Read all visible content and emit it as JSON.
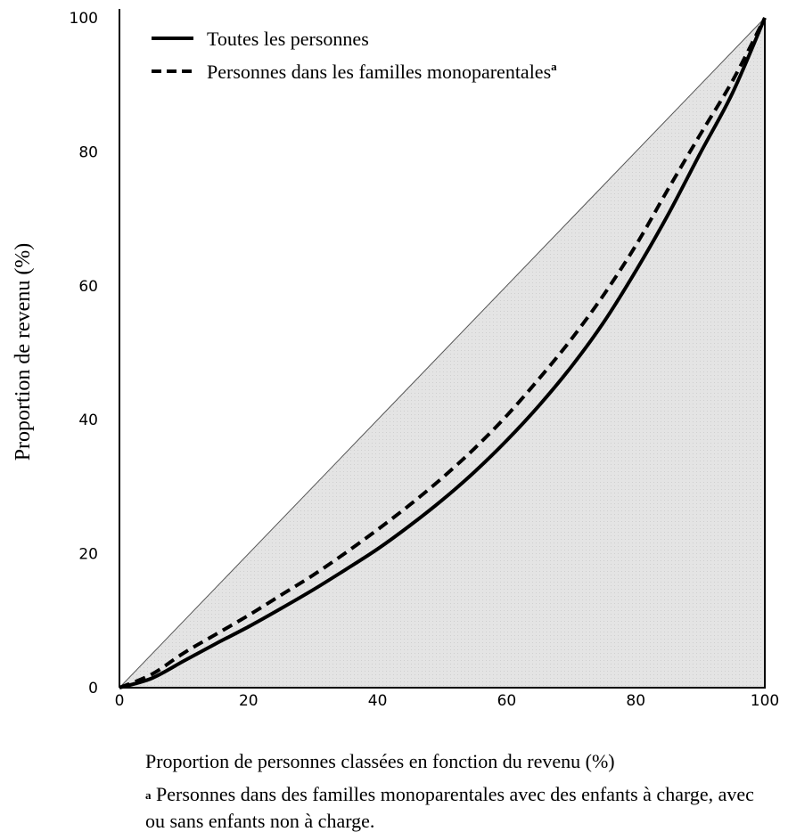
{
  "chart_data": {
    "type": "line",
    "xlabel": "Proportion de personnes classées en fonction du revenu (%)",
    "ylabel": "Proportion de revenu (%)",
    "xlim": [
      0,
      100
    ],
    "ylim": [
      0,
      100
    ],
    "x_ticks": [
      "0",
      "20",
      "40",
      "60",
      "80",
      "100"
    ],
    "y_ticks": [
      "0",
      "20",
      "40",
      "60",
      "80",
      "100"
    ],
    "grid": false,
    "legend_placement": "top-left",
    "shaded_area": "under equality line",
    "equality_line": [
      [
        0,
        0
      ],
      [
        100,
        100
      ]
    ],
    "series": [
      {
        "name": "Toutes les personnes",
        "style": "solid",
        "x": [
          0,
          5,
          10,
          15,
          20,
          25,
          30,
          35,
          40,
          45,
          50,
          55,
          60,
          65,
          70,
          75,
          80,
          85,
          90,
          95,
          100
        ],
        "y": [
          0,
          1.4,
          4.0,
          6.6,
          9.1,
          11.8,
          14.6,
          17.6,
          20.7,
          24.2,
          28.0,
          32.2,
          36.9,
          42.1,
          47.9,
          54.5,
          62.2,
          70.6,
          79.8,
          88.8,
          100
        ]
      },
      {
        "name": "Personnes dans les familles monoparentales",
        "name_superscript": "a",
        "style": "dashed",
        "x": [
          0,
          5,
          10,
          15,
          20,
          25,
          30,
          35,
          40,
          45,
          50,
          55,
          60,
          65,
          70,
          75,
          80,
          85,
          90,
          95,
          100
        ],
        "y": [
          0,
          2.0,
          5.2,
          8.0,
          10.8,
          13.8,
          16.8,
          20.1,
          23.6,
          27.3,
          31.3,
          35.7,
          40.6,
          46.1,
          52.0,
          58.6,
          66.0,
          74.4,
          82.6,
          90.6,
          100
        ]
      }
    ]
  },
  "footnote": {
    "marker": "a",
    "text": " Personnes dans des familles monoparentales avec des enfants à charge, avec ou sans enfants non à charge."
  },
  "colors": {
    "shade": "#e2e2e2",
    "line": "#000000",
    "background": "#ffffff"
  }
}
